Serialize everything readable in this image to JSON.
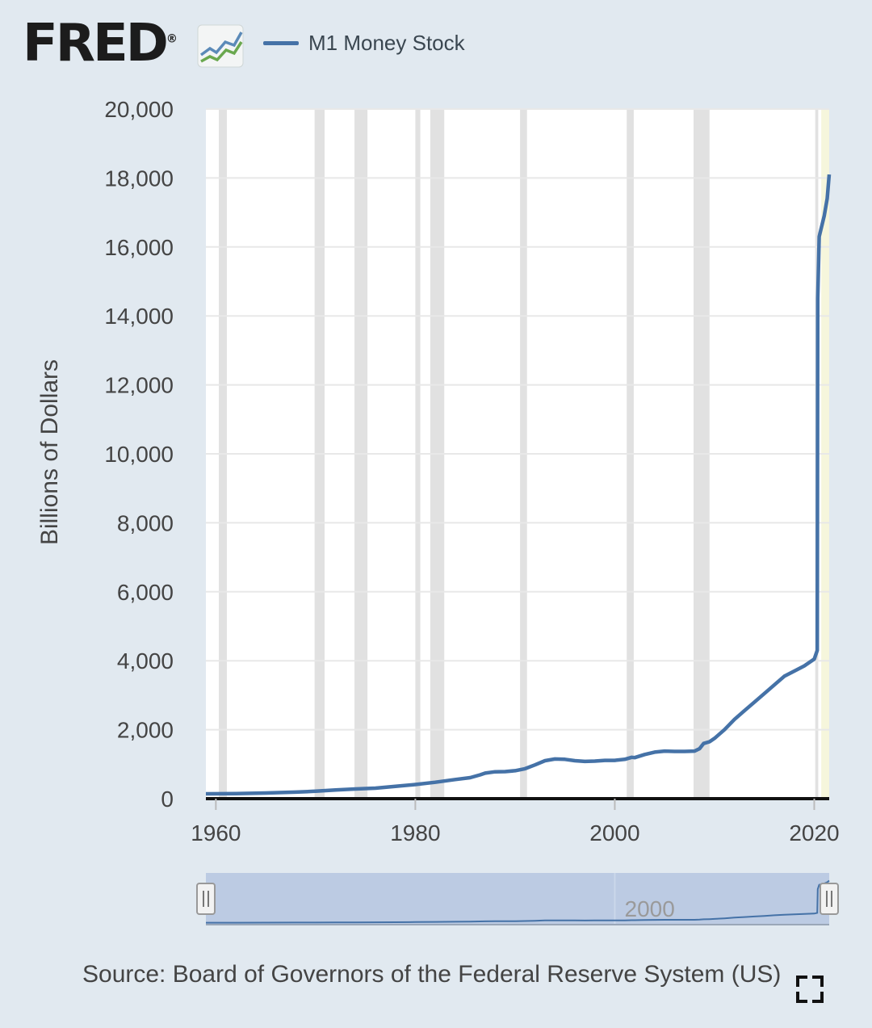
{
  "header": {
    "brand": "FRED",
    "brand_registered": "®",
    "logo_icon": "line-chart-logo-icon"
  },
  "footer": {
    "source": "Source: Board of Governors of the Federal Reserve System (US)",
    "fullscreen_icon": "fullscreen-icon"
  },
  "colors": {
    "page_bg": "#e1e9f0",
    "plot_bg": "#ffffff",
    "series": "#4572a7",
    "recession": "#e1e1e1",
    "gridline": "#e8e8e8",
    "highlight": "#f6f6dc",
    "navigator_fill": "#bccbe3"
  },
  "chart_data": {
    "type": "line",
    "title": "",
    "xlabel": "",
    "ylabel": "Billions of Dollars",
    "xlim": [
      1959.0,
      2021.5
    ],
    "ylim": [
      0,
      20000
    ],
    "yticks": [
      0,
      2000,
      4000,
      6000,
      8000,
      10000,
      12000,
      14000,
      16000,
      18000,
      20000
    ],
    "ytick_labels": [
      "0",
      "2,000",
      "4,000",
      "6,000",
      "8,000",
      "10,000",
      "12,000",
      "14,000",
      "16,000",
      "18,000",
      "20,000"
    ],
    "xticks": [
      1960,
      1980,
      2000,
      2020
    ],
    "xtick_labels": [
      "1960",
      "1980",
      "2000",
      "2020"
    ],
    "grid": true,
    "legend": "top-left",
    "series": [
      {
        "name": "M1 Money Stock",
        "x": [
          1959.0,
          1962.0,
          1965.0,
          1968.0,
          1970.0,
          1972.0,
          1974.0,
          1976.0,
          1978.0,
          1980.0,
          1982.0,
          1984.0,
          1985.5,
          1986.5,
          1987.0,
          1988.0,
          1989.0,
          1990.0,
          1991.0,
          1992.0,
          1993.0,
          1994.0,
          1995.0,
          1996.0,
          1997.0,
          1998.0,
          1999.0,
          2000.0,
          2001.0,
          2001.7,
          2002.0,
          2003.0,
          2004.0,
          2005.0,
          2006.0,
          2007.0,
          2008.0,
          2008.5,
          2008.9,
          2009.5,
          2010.0,
          2011.0,
          2011.5,
          2012.0,
          2013.0,
          2014.0,
          2015.0,
          2016.0,
          2017.0,
          2018.0,
          2019.0,
          2020.0,
          2020.3,
          2020.35,
          2020.5,
          2021.0,
          2021.3,
          2021.5
        ],
        "values": [
          140,
          145,
          165,
          190,
          215,
          250,
          280,
          305,
          355,
          410,
          475,
          555,
          610,
          690,
          740,
          780,
          785,
          810,
          870,
          980,
          1100,
          1150,
          1140,
          1100,
          1080,
          1090,
          1110,
          1110,
          1140,
          1200,
          1190,
          1280,
          1350,
          1380,
          1370,
          1370,
          1380,
          1450,
          1600,
          1650,
          1750,
          2000,
          2150,
          2300,
          2550,
          2800,
          3050,
          3300,
          3550,
          3700,
          3850,
          4050,
          4300,
          14500,
          16300,
          16900,
          17400,
          18100
        ]
      }
    ],
    "recessions": [
      [
        1960.3,
        1961.1
      ],
      [
        1969.9,
        1970.9
      ],
      [
        1973.9,
        1975.2
      ],
      [
        1980.0,
        1980.5
      ],
      [
        1981.5,
        1982.9
      ],
      [
        1990.5,
        1991.2
      ],
      [
        2001.2,
        2001.9
      ],
      [
        2007.9,
        2009.5
      ],
      [
        2020.1,
        2020.4
      ]
    ],
    "navigator": {
      "label": "2000"
    }
  }
}
